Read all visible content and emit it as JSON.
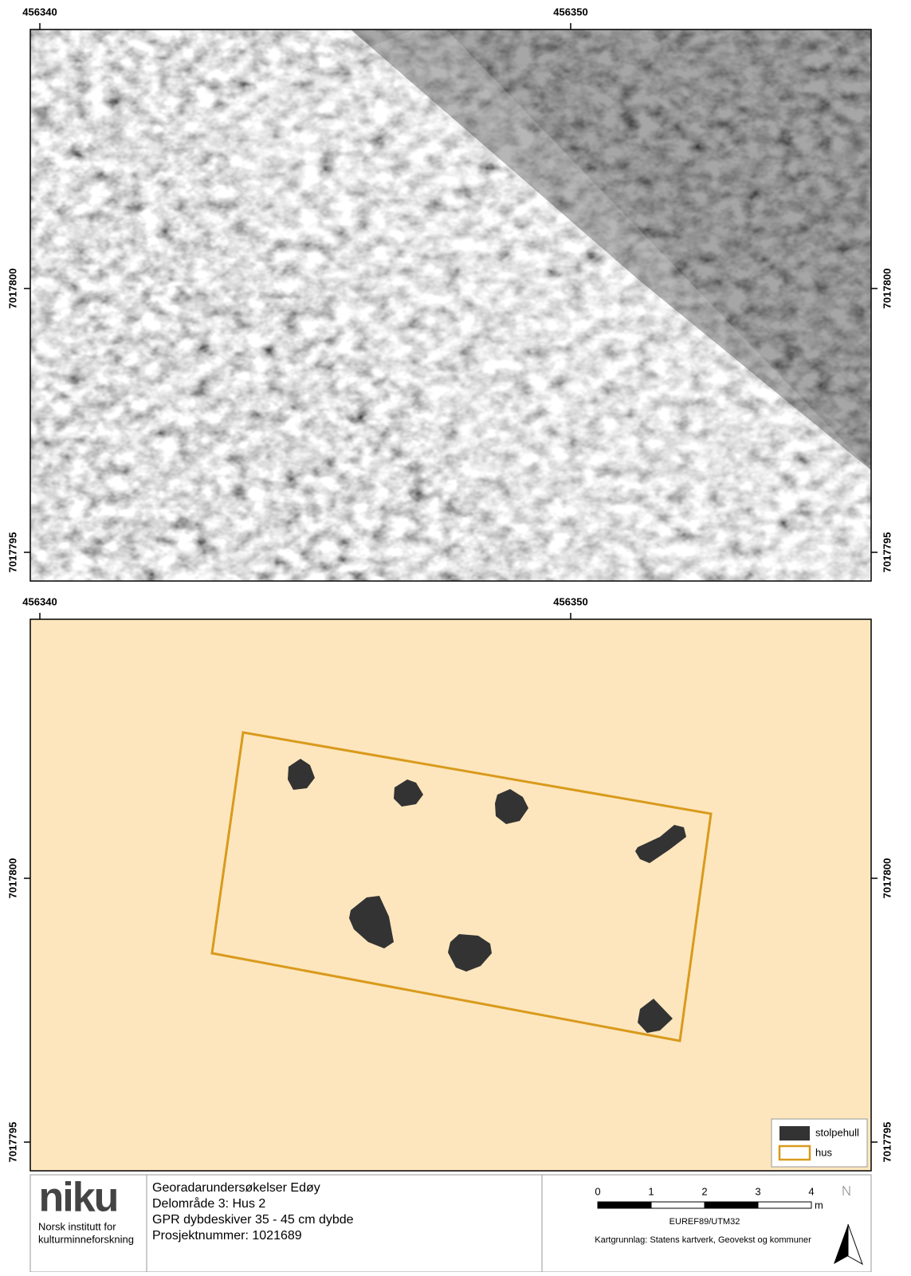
{
  "maps": {
    "x_ticks": [
      456340,
      456350
    ],
    "y_ticks": [
      7017800,
      7017795
    ]
  },
  "legend": {
    "items": [
      "stolpehull",
      "hus"
    ]
  },
  "title_block": {
    "logo": "niku",
    "institution": [
      "Norsk institutt for",
      "kulturminneforskning"
    ],
    "lines": [
      "Georadarundersøkelser Edøy",
      "Delområde 3: Hus 2",
      "GPR dybdeskiver 35 - 45 cm dybde",
      "Prosjektnummer: 1021689"
    ],
    "scale_bar": {
      "ticks": [
        0,
        1,
        2,
        3,
        4
      ],
      "unit": "m"
    },
    "projection": "EUREF89/UTM32",
    "source": "Kartgrunnlag: Statens kartverk, Geovekst og kommuner"
  }
}
